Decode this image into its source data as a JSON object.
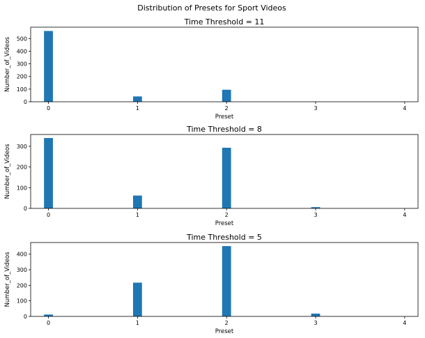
{
  "figure": {
    "suptitle": "Distribution of Presets for Sport Videos",
    "bar_color": "#1f77b4"
  },
  "chart_data": [
    {
      "type": "bar",
      "title": "Time Threshold = 11",
      "xlabel": "Preset",
      "ylabel": "Number_of_Videos",
      "x": [
        0,
        1,
        2,
        3,
        4
      ],
      "xtick_labels": [
        "0",
        "1",
        "2",
        "3",
        "4"
      ],
      "values": [
        560,
        42,
        95,
        0,
        0
      ],
      "xlim": [
        -0.2,
        4.15
      ],
      "ylim": [
        0,
        590
      ],
      "yticks": [
        0,
        100,
        200,
        300,
        400,
        500
      ],
      "grid": false,
      "legend": "none"
    },
    {
      "type": "bar",
      "title": "Time Threshold = 8",
      "xlabel": "Preset",
      "ylabel": "Number_of_Videos",
      "x": [
        0,
        1,
        2,
        3,
        4
      ],
      "xtick_labels": [
        "0",
        "1",
        "2",
        "3",
        "4"
      ],
      "values": [
        340,
        62,
        293,
        6,
        0
      ],
      "xlim": [
        -0.2,
        4.15
      ],
      "ylim": [
        0,
        357
      ],
      "yticks": [
        0,
        100,
        200,
        300
      ],
      "grid": false,
      "legend": "none"
    },
    {
      "type": "bar",
      "title": "Time Threshold = 5",
      "xlabel": "Preset",
      "ylabel": "Number_of_Videos",
      "x": [
        0,
        1,
        2,
        3,
        4
      ],
      "xtick_labels": [
        "0",
        "1",
        "2",
        "3",
        "4"
      ],
      "values": [
        12,
        217,
        452,
        18,
        0
      ],
      "xlim": [
        -0.2,
        4.15
      ],
      "ylim": [
        0,
        475
      ],
      "yticks": [
        0,
        100,
        200,
        300,
        400
      ],
      "grid": false,
      "legend": "none"
    }
  ]
}
